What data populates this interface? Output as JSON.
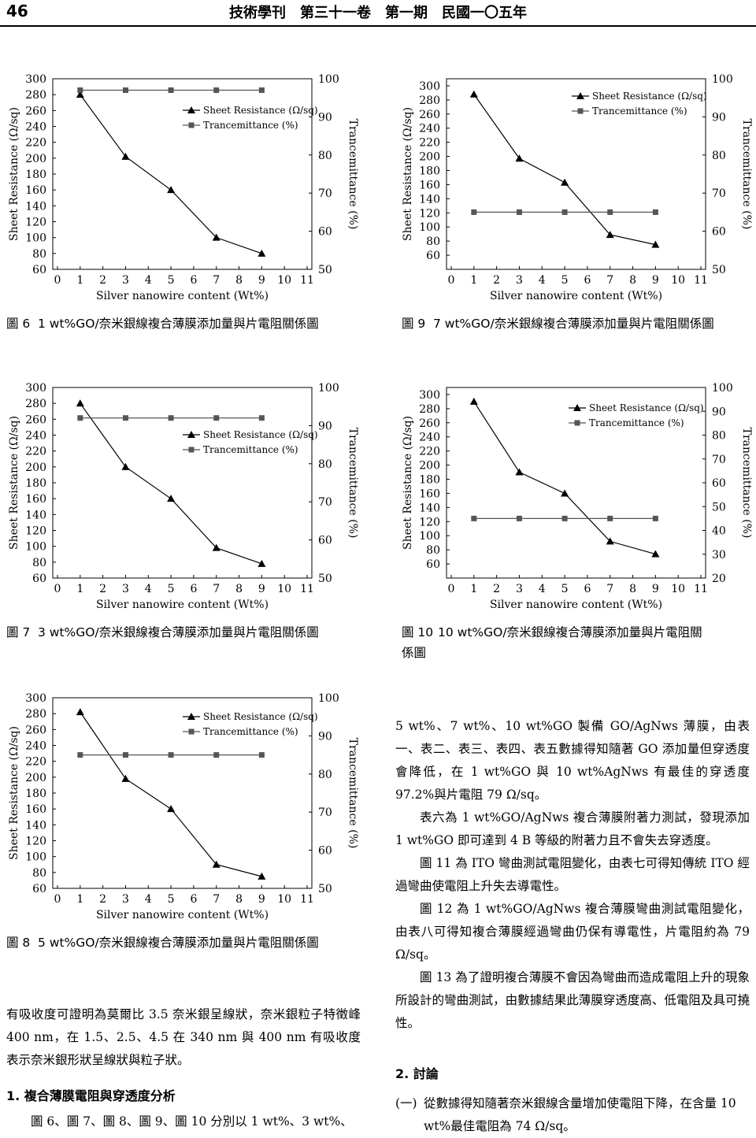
{
  "header": {
    "page_number": "46",
    "journal": "技術學刊　第三十一卷　第一期　民國一〇五年"
  },
  "figures": [
    {
      "id": "fig6",
      "caption_num": "圖 6",
      "caption": "1 wt%GO/奈米銀線複合薄膜添加量與片電阻關係圖"
    },
    {
      "id": "fig9",
      "caption_num": "圖 9",
      "caption": "7 wt%GO/奈米銀線複合薄膜添加量與片電阻關係圖"
    },
    {
      "id": "fig7",
      "caption_num": "圖 7",
      "caption": "3 wt%GO/奈米銀線複合薄膜添加量與片電阻關係圖"
    },
    {
      "id": "fig10",
      "caption_num": "圖 10",
      "caption": "10 wt%GO/奈米銀線複合薄膜添加量與片電阻關",
      "caption_cont": "係圖"
    },
    {
      "id": "fig8",
      "caption_num": "圖 8",
      "caption": "5 wt%GO/奈米銀線複合薄膜添加量與片電阻關係圖"
    }
  ],
  "chart_data": [
    {
      "id": "fig6",
      "type": "line",
      "xlabel": "Silver nanowire content (Wt%)",
      "ylabel": "Sheet Resistance (Ω/sq)",
      "y2label": "Trancemittance (%)",
      "xticks": [
        0,
        1,
        2,
        3,
        4,
        5,
        6,
        7,
        8,
        9,
        10,
        11
      ],
      "yticks": [
        60,
        80,
        100,
        120,
        140,
        160,
        180,
        200,
        220,
        240,
        260,
        280,
        300
      ],
      "y2ticks": [
        50,
        60,
        70,
        80,
        90,
        100
      ],
      "xlim": [
        0,
        11
      ],
      "ylim": [
        60,
        300
      ],
      "y2lim": [
        50,
        100
      ],
      "legend": "top-right",
      "series": [
        {
          "name": "Sheet Resistance (Ω/sq)",
          "axis": "left",
          "marker": "triangle",
          "x": [
            1,
            3,
            5,
            7,
            9
          ],
          "y": [
            280,
            202,
            160,
            100,
            80
          ]
        },
        {
          "name": "Trancemittance (%)",
          "axis": "right",
          "marker": "square",
          "x": [
            1,
            3,
            5,
            7,
            9
          ],
          "y": [
            97,
            97,
            97,
            97,
            97
          ]
        }
      ]
    },
    {
      "id": "fig9",
      "type": "line",
      "xlabel": "Silver nanowire content (Wt%)",
      "ylabel": "Sheet Resistance (Ω/sq)",
      "y2label": "Trancemittance (%)",
      "xticks": [
        0,
        1,
        2,
        3,
        4,
        5,
        6,
        7,
        8,
        9,
        10,
        11
      ],
      "yticks": [
        60,
        80,
        100,
        120,
        140,
        160,
        180,
        200,
        220,
        240,
        260,
        280,
        300
      ],
      "y2ticks": [
        50,
        60,
        70,
        80,
        90,
        100
      ],
      "xlim": [
        0,
        11
      ],
      "ylim": [
        40,
        310
      ],
      "y2lim": [
        50,
        100
      ],
      "legend": "top-right",
      "series": [
        {
          "name": "Sheet Resistance (Ω/sq)",
          "axis": "left",
          "marker": "triangle",
          "x": [
            1,
            3,
            5,
            7,
            9
          ],
          "y": [
            288,
            197,
            163,
            89,
            75
          ]
        },
        {
          "name": "Trancemittance (%)",
          "axis": "right",
          "marker": "square",
          "x": [
            1,
            3,
            5,
            7,
            9
          ],
          "y": [
            65,
            65,
            65,
            65,
            65
          ]
        }
      ]
    },
    {
      "id": "fig7",
      "type": "line",
      "xlabel": "Silver nanowire content (Wt%)",
      "ylabel": "Sheet Resistance (Ω/sq)",
      "y2label": "Trancemittance (%)",
      "xticks": [
        0,
        1,
        2,
        3,
        4,
        5,
        6,
        7,
        8,
        9,
        10,
        11
      ],
      "yticks": [
        60,
        80,
        100,
        120,
        140,
        160,
        180,
        200,
        220,
        240,
        260,
        280,
        300
      ],
      "y2ticks": [
        50,
        60,
        70,
        80,
        90,
        100
      ],
      "xlim": [
        0,
        11
      ],
      "ylim": [
        60,
        300
      ],
      "y2lim": [
        50,
        100
      ],
      "legend": "top-right",
      "series": [
        {
          "name": "Sheet Resistance (Ω/sq)",
          "axis": "left",
          "marker": "triangle",
          "x": [
            1,
            3,
            5,
            7,
            9
          ],
          "y": [
            280,
            200,
            160,
            98,
            78
          ]
        },
        {
          "name": "Trancemittance (%)",
          "axis": "right",
          "marker": "square",
          "x": [
            1,
            3,
            5,
            7,
            9
          ],
          "y": [
            92,
            92,
            92,
            92,
            92
          ]
        }
      ]
    },
    {
      "id": "fig10",
      "type": "line",
      "xlabel": "Silver nanowire content (Wt%)",
      "ylabel": "Sheet Resistance (Ω/sq)",
      "y2label": "Trancemittance (%)",
      "xticks": [
        0,
        1,
        2,
        3,
        4,
        5,
        6,
        7,
        8,
        9,
        10,
        11
      ],
      "yticks": [
        60,
        80,
        100,
        120,
        140,
        160,
        180,
        200,
        220,
        240,
        260,
        280,
        300
      ],
      "y2ticks": [
        20,
        30,
        40,
        50,
        60,
        70,
        80,
        90,
        100
      ],
      "xlim": [
        0,
        11
      ],
      "ylim": [
        40,
        310
      ],
      "y2lim": [
        20,
        100
      ],
      "legend": "top-right",
      "series": [
        {
          "name": "Sheet Resistance (Ω/sq)",
          "axis": "left",
          "marker": "triangle",
          "x": [
            1,
            3,
            5,
            7,
            9
          ],
          "y": [
            290,
            190,
            160,
            92,
            74
          ]
        },
        {
          "name": "Trancemittance (%)",
          "axis": "right",
          "marker": "square",
          "x": [
            1,
            3,
            5,
            7,
            9
          ],
          "y": [
            45,
            45,
            45,
            45,
            45
          ]
        }
      ]
    },
    {
      "id": "fig8",
      "type": "line",
      "xlabel": "Silver nanowire content (Wt%)",
      "ylabel": "Sheet Resistance (Ω/sq)",
      "y2label": "Trancemittance (%)",
      "xticks": [
        0,
        1,
        2,
        3,
        4,
        5,
        6,
        7,
        8,
        9,
        10,
        11
      ],
      "yticks": [
        60,
        80,
        100,
        120,
        140,
        160,
        180,
        200,
        220,
        240,
        260,
        280,
        300
      ],
      "y2ticks": [
        50,
        60,
        70,
        80,
        90,
        100
      ],
      "xlim": [
        0,
        11
      ],
      "ylim": [
        60,
        300
      ],
      "y2lim": [
        50,
        100
      ],
      "legend": "top-right",
      "series": [
        {
          "name": "Sheet Resistance (Ω/sq)",
          "axis": "left",
          "marker": "triangle",
          "x": [
            1,
            3,
            5,
            7,
            9
          ],
          "y": [
            282,
            198,
            160,
            90,
            75
          ]
        },
        {
          "name": "Trancemittance (%)",
          "axis": "right",
          "marker": "square",
          "x": [
            1,
            3,
            5,
            7,
            9
          ],
          "y": [
            85,
            85,
            85,
            85,
            85
          ]
        }
      ]
    }
  ],
  "left_text": {
    "para1": "有吸收度可證明為莫爾比 3.5 奈米銀呈線狀，奈米銀粒子特徵峰 400 nm，在 1.5、2.5、4.5 在 340 nm 與 400 nm 有吸收度表示奈米銀形狀呈線狀與粒子狀。",
    "section1": "1. 複合薄膜電阻與穿透度分析",
    "para2": "圖 6、圖 7、圖 8、圖 9、圖 10 分別以 1 wt%、3 wt%、"
  },
  "right_text": {
    "para1": "5 wt%、7 wt%、10 wt%GO 製備 GO/AgNws 薄膜，由表一、表二、表三、表四、表五數據得知隨著 GO 添加量但穿透度會降低，在 1 wt%GO 與 10 wt%AgNws 有最佳的穿透度 97.2%與片電阻 79 Ω/sq。",
    "para2": "表六為 1 wt%GO/AgNws 複合薄膜附著力測試，發現添加 1 wt%GO 即可達到 4 B 等級的附著力且不會失去穿透度。",
    "para3": "圖 11 為 ITO 彎曲測試電阻變化，由表七可得知傳統 ITO 經過彎曲使電阻上升失去導電性。",
    "para4": "圖 12 為 1 wt%GO/AgNws 複合薄膜彎曲測試電阻變化，由表八可得知複合薄膜經過彎曲仍保有導電性，片電阻約為 79 Ω/sq。",
    "para5": "圖 13 為了證明複合薄膜不會因為彎曲而造成電阻上升的現象所設計的彎曲測試，由數據結果此薄膜穿透度高、低電阻及具可撓性。",
    "section2": "2. 討論",
    "item1_marker": "(一)",
    "item1": "從數據得知隨著奈米銀線含量增加使電阻下降，在含量 10 wt%最佳電阻為 74 Ω/sq。"
  }
}
